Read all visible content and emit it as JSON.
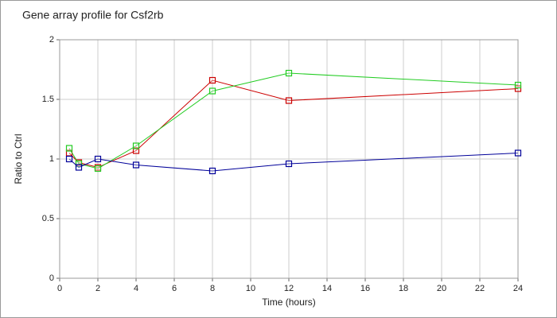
{
  "chart_data": {
    "type": "line",
    "title": "Gene array profile for Csf2rb",
    "x_label": "Time (hours)",
    "y_label": "Ratio to Ctrl",
    "x": [
      0.5,
      1,
      2,
      4,
      8,
      12,
      24
    ],
    "series": [
      {
        "color": "#cc0000",
        "values": [
          1.05,
          0.97,
          0.93,
          1.07,
          1.66,
          1.49,
          1.59
        ]
      },
      {
        "color": "#22cc22",
        "values": [
          1.09,
          0.96,
          0.92,
          1.11,
          1.57,
          1.72,
          1.62
        ]
      },
      {
        "color": "#000099",
        "values": [
          1.0,
          0.93,
          1.0,
          0.95,
          0.9,
          0.96,
          1.05
        ]
      }
    ],
    "xlim": [
      0,
      24
    ],
    "xticks": [
      0,
      2,
      4,
      6,
      8,
      10,
      12,
      14,
      16,
      18,
      20,
      22,
      24
    ],
    "ylim": [
      0,
      2
    ],
    "yticks": [
      0,
      0.5,
      1,
      1.5,
      2
    ],
    "grid": true
  }
}
